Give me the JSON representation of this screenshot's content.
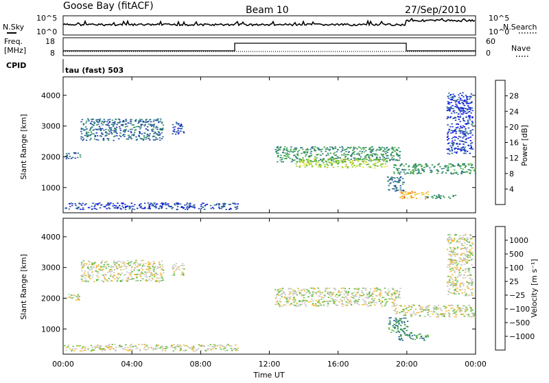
{
  "header": {
    "station": "Goose Bay (fitACF)",
    "beam": "Beam 10",
    "date": "27/Sep/2010"
  },
  "strip": {
    "nsky_label": "N.Sky",
    "nsearch_label": "N.Search",
    "freq_label_1": "Freq.",
    "freq_label_2": "[MHz]",
    "nave_label": "Nave",
    "cpid_label": "CPID",
    "cpid_value": "tau (fast) 503",
    "noise_ticks_left": [
      "10^5",
      "10^0"
    ],
    "noise_ticks_right": [
      "10^5",
      "10^0"
    ],
    "freq_ticks": [
      "18",
      "8"
    ],
    "nave_ticks": [
      "60",
      "0"
    ]
  },
  "chart_data": [
    {
      "type": "heatmap",
      "title": "",
      "xlabel": "Time UT",
      "ylabel": "Slant Range [km]",
      "x_ticks": [
        "00:00",
        "04:00",
        "08:00",
        "12:00",
        "16:00",
        "20:00",
        "00:00"
      ],
      "y_ticks": [
        1000,
        2000,
        3000,
        4000
      ],
      "ylim": [
        180,
        4600
      ],
      "xlim_hours": [
        0,
        24
      ],
      "colorbar": {
        "label": "Power [dB]",
        "ticks": [
          "28",
          "24",
          "20",
          "16",
          "12",
          "8",
          "4"
        ],
        "colors": [
          "#0000ff",
          "#1e3cb4",
          "#2a6e8c",
          "#2f8f5a",
          "#49b33c",
          "#9fcf2f",
          "#f2e029",
          "#f5a623",
          "#f26b1d",
          "#e8251a"
        ]
      },
      "regions": [
        {
          "t0": 0.0,
          "t1": 1.0,
          "r0": 1950,
          "r1": 2150,
          "level": 2
        },
        {
          "t0": 1.0,
          "t1": 5.8,
          "r0": 2550,
          "r1": 3250,
          "level": 2
        },
        {
          "t0": 6.3,
          "t1": 7.0,
          "r0": 2750,
          "r1": 3150,
          "level": 1
        },
        {
          "t0": 0.0,
          "t1": 10.2,
          "r0": 300,
          "r1": 520,
          "level": 1
        },
        {
          "t0": 12.3,
          "t1": 19.6,
          "r0": 1850,
          "r1": 2350,
          "level": 3
        },
        {
          "t0": 13.5,
          "t1": 18.8,
          "r0": 1650,
          "r1": 1950,
          "level": 5
        },
        {
          "t0": 19.2,
          "t1": 24.0,
          "r0": 1450,
          "r1": 1800,
          "level": 3
        },
        {
          "t0": 19.5,
          "t1": 21.2,
          "r0": 650,
          "r1": 900,
          "level": 7
        },
        {
          "t0": 21.0,
          "t1": 22.8,
          "r0": 650,
          "r1": 800,
          "level": 3
        },
        {
          "t0": 22.3,
          "t1": 23.8,
          "r0": 2100,
          "r1": 4100,
          "level": 1
        },
        {
          "t0": 18.8,
          "t1": 19.8,
          "r0": 900,
          "r1": 1400,
          "level": 2
        }
      ]
    },
    {
      "type": "heatmap",
      "title": "",
      "xlabel": "Time UT",
      "ylabel": "Slant Range [km]",
      "x_ticks": [
        "00:00",
        "04:00",
        "08:00",
        "12:00",
        "16:00",
        "20:00",
        "00:00"
      ],
      "y_ticks": [
        1000,
        2000,
        3000,
        4000
      ],
      "ylim": [
        180,
        4600
      ],
      "xlim_hours": [
        0,
        24
      ],
      "colorbar": {
        "label": "Velocity [m s⁻¹]",
        "ticks": [
          "1000",
          "500",
          "100",
          "25",
          "−25",
          "−100",
          "−500",
          "−1000"
        ],
        "colors": [
          "#0a1f8c",
          "#1a57a8",
          "#1f7d4a",
          "#5bbf3a",
          "#c8c8c0",
          "#f5b82d",
          "#f27a1d",
          "#e8251a"
        ]
      },
      "regions": [
        {
          "t0": 0.0,
          "t1": 1.0,
          "r0": 1950,
          "r1": 2150,
          "level": 4
        },
        {
          "t0": 1.0,
          "t1": 5.8,
          "r0": 2550,
          "r1": 3250,
          "level": 4
        },
        {
          "t0": 6.3,
          "t1": 7.0,
          "r0": 2750,
          "r1": 3150,
          "level": 4
        },
        {
          "t0": 0.0,
          "t1": 10.2,
          "r0": 300,
          "r1": 520,
          "level": 4
        },
        {
          "t0": 12.3,
          "t1": 19.6,
          "r0": 1750,
          "r1": 2350,
          "level": 4
        },
        {
          "t0": 19.2,
          "t1": 24.0,
          "r0": 1400,
          "r1": 1800,
          "level": 4
        },
        {
          "t0": 18.9,
          "t1": 20.0,
          "r0": 900,
          "r1": 1400,
          "level": 2
        },
        {
          "t0": 19.5,
          "t1": 21.2,
          "r0": 650,
          "r1": 900,
          "level": 2
        },
        {
          "t0": 22.3,
          "t1": 23.8,
          "r0": 2100,
          "r1": 4100,
          "level": 4
        }
      ]
    }
  ]
}
